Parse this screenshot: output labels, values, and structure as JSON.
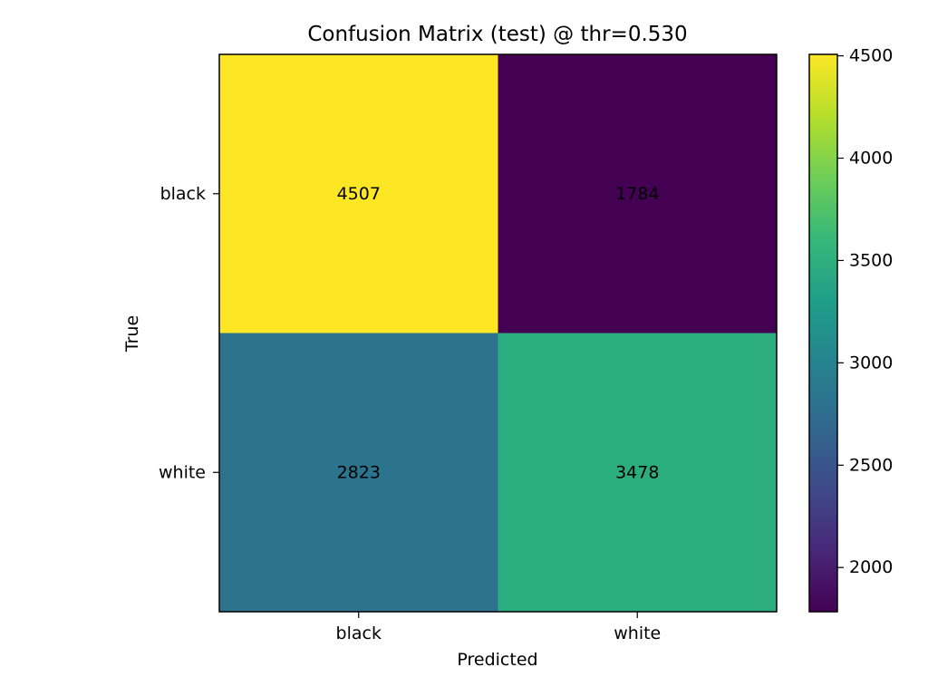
{
  "chart_data": {
    "type": "heatmap",
    "title": "Confusion Matrix (test) @ thr=0.530",
    "xlabel": "Predicted",
    "ylabel": "True",
    "x_categories": [
      "black",
      "white"
    ],
    "y_categories": [
      "black",
      "white"
    ],
    "values": [
      [
        4507,
        1784
      ],
      [
        2823,
        3478
      ]
    ],
    "colormap": "viridis",
    "colorbar": {
      "range": [
        1784,
        4507
      ],
      "ticks": [
        2000,
        2500,
        3000,
        3500,
        4000,
        4500
      ],
      "tick_labels": [
        "2000",
        "2500",
        "3000",
        "3500",
        "4000",
        "4500"
      ]
    },
    "grid": false
  }
}
